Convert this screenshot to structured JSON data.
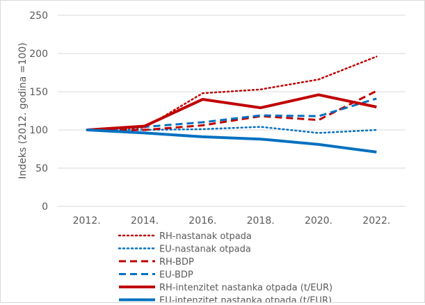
{
  "chart_data": {
    "type": "line",
    "title": "",
    "xlabel": "",
    "ylabel": "Indeks (2012. godina =100)",
    "ylim": [
      0,
      250
    ],
    "yticks": [
      0,
      50,
      100,
      150,
      200,
      250
    ],
    "categories": [
      "2012.",
      "2014.",
      "2016.",
      "2018.",
      "2020.",
      "2022."
    ],
    "grid": true,
    "legend_position": "bottom",
    "series": [
      {
        "name": "RH-nastanak otpada",
        "color": "#C00000",
        "style": "dotted",
        "values": [
          100,
          103,
          148,
          153,
          166,
          196
        ]
      },
      {
        "name": "EU-nastanak otpada",
        "color": "#0070C0",
        "style": "dotted",
        "values": [
          100,
          100,
          101,
          104,
          96,
          100
        ]
      },
      {
        "name": "RH-BDP",
        "color": "#C00000",
        "style": "dashed",
        "values": [
          100,
          100,
          106,
          118,
          113,
          151
        ]
      },
      {
        "name": "EU-BDP",
        "color": "#0070C0",
        "style": "dashed",
        "values": [
          100,
          104,
          110,
          119,
          118,
          141
        ]
      },
      {
        "name": "RH-intenzitet nastanka otpada (t/EUR)",
        "color": "#C00000",
        "style": "solid",
        "values": [
          100,
          105,
          140,
          129,
          146,
          130
        ]
      },
      {
        "name": "EU-intenzitet nastanka otpada (t/EUR)",
        "color": "#0070C0",
        "style": "solid",
        "values": [
          100,
          96,
          91,
          88,
          81,
          71
        ]
      }
    ]
  }
}
